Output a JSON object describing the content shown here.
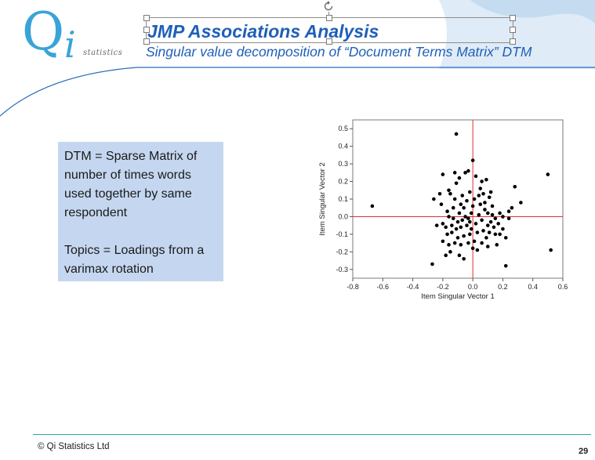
{
  "header": {
    "logo_letter": "Q",
    "logo_i": "i",
    "logo_text": "statistics",
    "title": "JMP Associations Analysis",
    "subtitle": "Singular value decomposition of “Document Terms Matrix” DTM"
  },
  "info_box": {
    "line1": "DTM = Sparse Matrix of number of times words used together by same respondent",
    "line2": "Topics = Loadings from a varimax rotation"
  },
  "footer": {
    "copyright": "© Qi Statistics Ltd",
    "page_number": "29"
  },
  "colors": {
    "accent": "#1f5fb8",
    "logo": "#3aa3d8",
    "info_box": "#c5d7f0",
    "reference_line": "#e03030",
    "footer_line": "#2aa6a6"
  },
  "chart_data": {
    "type": "scatter",
    "xlabel": "Item Singular Vector 1",
    "ylabel": "Item Singular Vector 2",
    "xlim": [
      -0.8,
      0.6
    ],
    "ylim": [
      -0.35,
      0.55
    ],
    "xticks": [
      -0.8,
      -0.6,
      -0.4,
      -0.2,
      0.0,
      0.2,
      0.4,
      0.6
    ],
    "xtick_labels": [
      "-0.8",
      "-0.6",
      "-0.4",
      "-0.2",
      "0.0",
      "0.2",
      "0.4",
      "0.6"
    ],
    "yticks": [
      -0.3,
      -0.2,
      -0.1,
      0.0,
      0.1,
      0.2,
      0.3,
      0.4,
      0.5
    ],
    "ytick_labels": [
      "-0.3",
      "-0.2",
      "-0.1",
      "0.0",
      "0.1",
      "0.2",
      "0.3",
      "0.4",
      "0.5"
    ],
    "reference_lines": {
      "x": 0.0,
      "y": 0.0
    },
    "grid": false,
    "points": [
      [
        -0.67,
        0.06
      ],
      [
        -0.11,
        0.47
      ],
      [
        0.5,
        0.24
      ],
      [
        0.52,
        -0.19
      ],
      [
        -0.27,
        -0.27
      ],
      [
        0.22,
        -0.28
      ],
      [
        0.0,
        0.32
      ],
      [
        -0.26,
        0.1
      ],
      [
        -0.2,
        0.24
      ],
      [
        -0.12,
        0.25
      ],
      [
        -0.05,
        0.25
      ],
      [
        -0.03,
        0.26
      ],
      [
        0.02,
        0.23
      ],
      [
        0.09,
        0.21
      ],
      [
        0.05,
        0.16
      ],
      [
        0.28,
        0.17
      ],
      [
        0.32,
        0.08
      ],
      [
        0.26,
        0.05
      ],
      [
        0.24,
        0.03
      ],
      [
        -0.16,
        0.15
      ],
      [
        -0.15,
        0.13
      ],
      [
        -0.12,
        0.1
      ],
      [
        -0.22,
        0.13
      ],
      [
        -0.11,
        0.19
      ],
      [
        -0.09,
        0.22
      ],
      [
        0.11,
        0.11
      ],
      [
        0.07,
        0.13
      ],
      [
        0.12,
        0.14
      ],
      [
        0.04,
        0.12
      ],
      [
        -0.02,
        0.14
      ],
      [
        0.01,
        0.1
      ],
      [
        -0.04,
        0.09
      ],
      [
        -0.08,
        0.07
      ],
      [
        -0.13,
        0.05
      ],
      [
        -0.17,
        0.03
      ],
      [
        -0.06,
        0.05
      ],
      [
        0.0,
        0.06
      ],
      [
        0.05,
        0.07
      ],
      [
        0.08,
        0.04
      ],
      [
        0.13,
        0.01
      ],
      [
        0.18,
        0.02
      ],
      [
        0.2,
        0.0
      ],
      [
        0.15,
        -0.01
      ],
      [
        0.1,
        0.02
      ],
      [
        -0.01,
        0.02
      ],
      [
        -0.03,
        -0.01
      ],
      [
        -0.07,
        -0.02
      ],
      [
        -0.1,
        -0.03
      ],
      [
        -0.13,
        -0.01
      ],
      [
        -0.16,
        0.0
      ],
      [
        -0.2,
        -0.04
      ],
      [
        -0.18,
        -0.06
      ],
      [
        -0.14,
        -0.05
      ],
      [
        -0.08,
        -0.06
      ],
      [
        -0.04,
        -0.05
      ],
      [
        0.02,
        -0.04
      ],
      [
        0.06,
        -0.02
      ],
      [
        0.1,
        -0.05
      ],
      [
        0.14,
        -0.06
      ],
      [
        0.17,
        -0.04
      ],
      [
        0.2,
        -0.07
      ],
      [
        0.22,
        -0.12
      ],
      [
        0.15,
        -0.1
      ],
      [
        0.11,
        -0.09
      ],
      [
        0.07,
        -0.08
      ],
      [
        0.03,
        -0.09
      ],
      [
        -0.02,
        -0.1
      ],
      [
        -0.06,
        -0.11
      ],
      [
        -0.1,
        -0.12
      ],
      [
        -0.14,
        -0.09
      ],
      [
        -0.2,
        -0.14
      ],
      [
        -0.16,
        -0.16
      ],
      [
        -0.12,
        -0.15
      ],
      [
        -0.08,
        -0.16
      ],
      [
        -0.03,
        -0.15
      ],
      [
        0.01,
        -0.14
      ],
      [
        0.06,
        -0.15
      ],
      [
        0.1,
        -0.17
      ],
      [
        0.16,
        -0.16
      ],
      [
        -0.18,
        -0.22
      ],
      [
        -0.09,
        -0.22
      ],
      [
        -0.06,
        -0.24
      ],
      [
        -0.15,
        -0.2
      ],
      [
        0.0,
        -0.18
      ],
      [
        0.09,
        -0.12
      ],
      [
        -0.05,
        0.0
      ],
      [
        -0.09,
        0.02
      ],
      [
        -0.11,
        -0.07
      ],
      [
        -0.02,
        -0.03
      ],
      [
        0.04,
        0.01
      ],
      [
        0.08,
        0.08
      ],
      [
        -0.07,
        0.12
      ],
      [
        0.13,
        0.06
      ],
      [
        -0.01,
        -0.07
      ],
      [
        0.12,
        -0.03
      ],
      [
        -0.17,
        -0.1
      ],
      [
        0.18,
        -0.1
      ],
      [
        0.03,
        -0.19
      ],
      [
        -0.21,
        0.07
      ],
      [
        0.24,
        -0.01
      ],
      [
        -0.24,
        -0.05
      ],
      [
        0.06,
        0.2
      ]
    ]
  }
}
